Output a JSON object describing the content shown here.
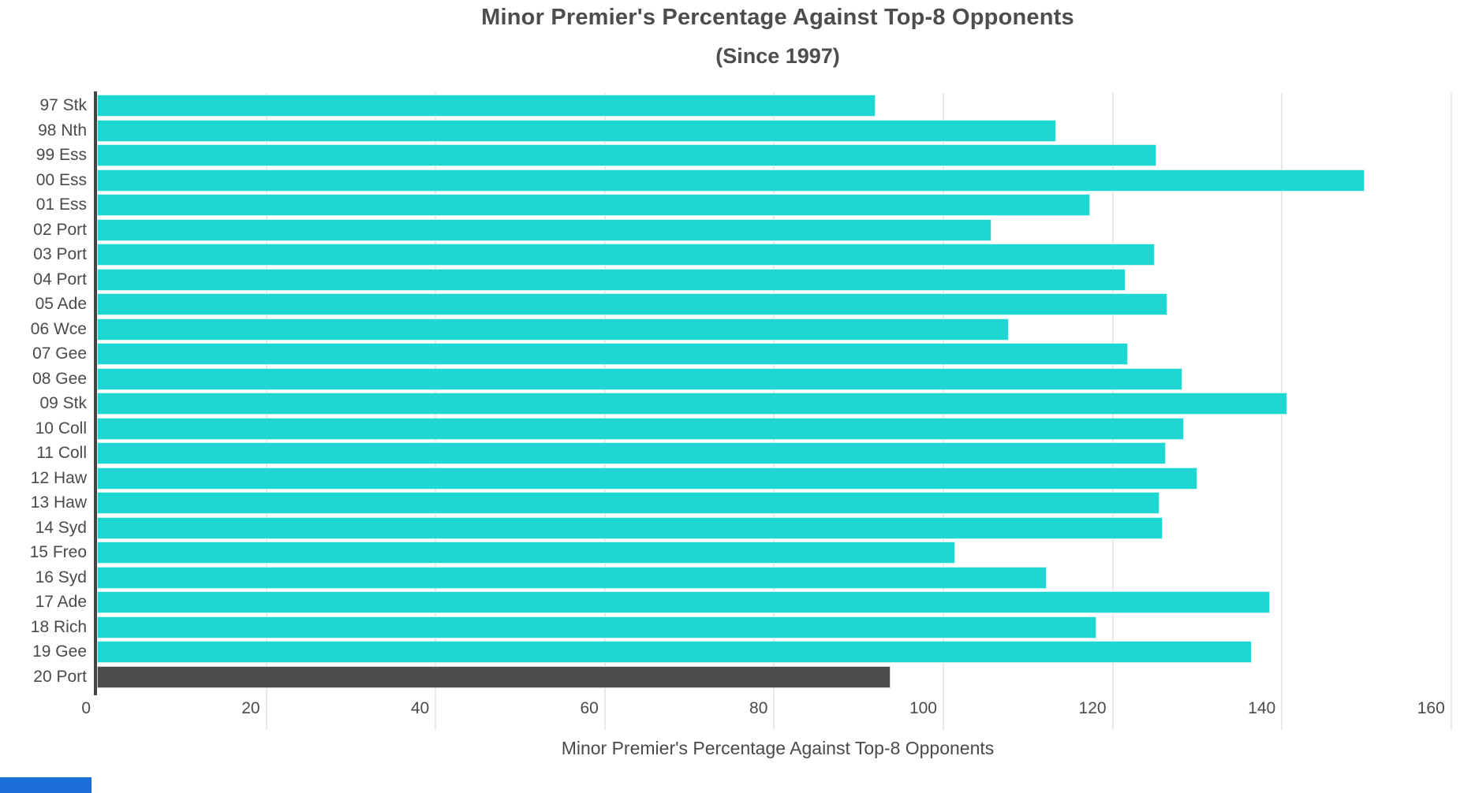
{
  "page": {
    "background": "#ffffff"
  },
  "chart_data": {
    "type": "bar",
    "orientation": "horizontal",
    "title": "Minor Premier's Percentage Against Top-8 Opponents",
    "subtitle": "(Since 1997)",
    "xlabel": "Minor Premier's Percentage Against Top-8 Opponents",
    "xlim": [
      0,
      160
    ],
    "xticks": [
      0,
      20,
      40,
      60,
      80,
      100,
      120,
      140,
      160
    ],
    "grid": "vertical-gridlines-on",
    "legend": "none",
    "categories": [
      "97 Stk",
      "98 Nth",
      "99 Ess",
      "00 Ess",
      "01 Ess",
      "02 Port",
      "03 Port",
      "04 Port",
      "05 Ade",
      "06 Wce",
      "07 Gee",
      "08 Gee",
      "09 Stk",
      "10 Coll",
      "11 Coll",
      "12 Haw",
      "13 Haw",
      "14 Syd",
      "15 Freo",
      "16 Syd",
      "17 Ade",
      "18 Rich",
      "19 Gee",
      "20 Port"
    ],
    "values": [
      92.0,
      113.3,
      125.2,
      149.8,
      117.3,
      105.7,
      125.0,
      121.5,
      126.5,
      107.7,
      121.8,
      128.2,
      140.6,
      128.4,
      126.3,
      130.0,
      125.5,
      125.9,
      101.4,
      112.2,
      138.6,
      118.1,
      136.4,
      93.8
    ],
    "bar_color_default": "#1fd7d2",
    "highlight_category": "20 Port",
    "highlight_color": "#4d4d4d",
    "colors": {
      "text": "#4a4a4a",
      "title_text": "#4d4d4d",
      "gridline": "#e9e9e9",
      "zeroline": "#444444",
      "footer_accent": "#1a6ed8"
    }
  }
}
